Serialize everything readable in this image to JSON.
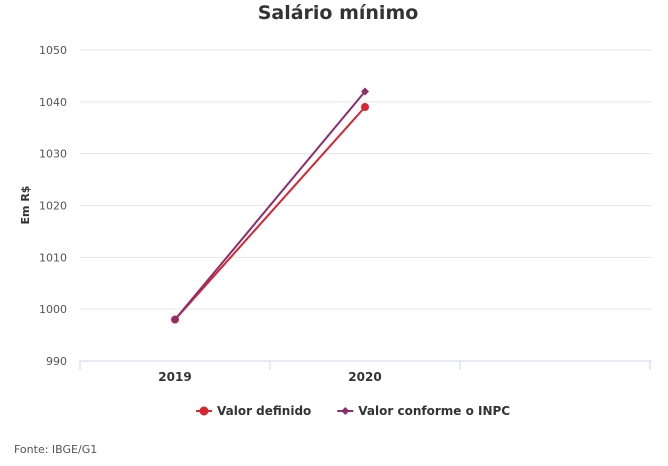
{
  "chart_data": {
    "type": "line",
    "title": "Salário mínimo",
    "ylabel": "Em R$",
    "xlabel": "",
    "categories": [
      "2019",
      "2020"
    ],
    "ylim": [
      990,
      1050
    ],
    "yticks": [
      990,
      1000,
      1010,
      1020,
      1030,
      1040,
      1050
    ],
    "grid": true,
    "legend_position": "bottom",
    "series": [
      {
        "name": "Valor definido",
        "values": [
          998,
          1039
        ],
        "color": "#d9232e",
        "marker": "circle"
      },
      {
        "name": "Valor conforme o INPC",
        "values": [
          998,
          1042
        ],
        "color": "#8b2d6e",
        "marker": "diamond"
      }
    ],
    "source": "Fonte: IBGE/G1"
  }
}
